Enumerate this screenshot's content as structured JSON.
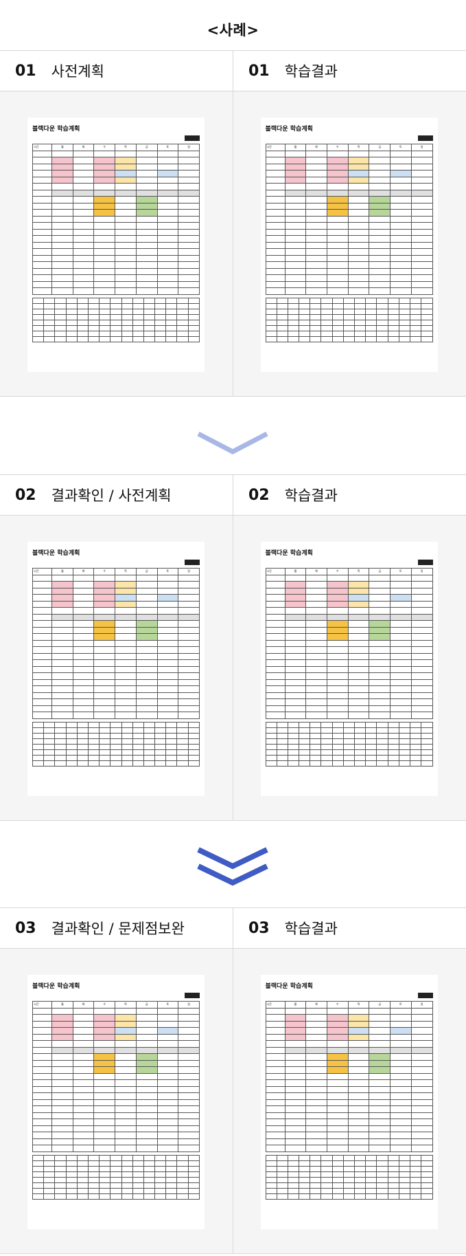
{
  "page_title": "<사례>",
  "sections": [
    {
      "left": {
        "num": "01",
        "title": "사전계획"
      },
      "right": {
        "num": "01",
        "title": "학습결과"
      }
    },
    {
      "left": {
        "num": "02",
        "title": "결과확인 / 사전계획"
      },
      "right": {
        "num": "02",
        "title": "학습결과"
      }
    },
    {
      "left": {
        "num": "03",
        "title": "결과확인 / 문제점보완"
      },
      "right": {
        "num": "03",
        "title": "학습결과"
      }
    }
  ],
  "sheet": {
    "title": "블랙다운 학습계획",
    "days": [
      "시간",
      "월",
      "화",
      "수",
      "목",
      "금",
      "토",
      "일"
    ]
  },
  "colors": {
    "arrow1": "#a9b7e6",
    "arrow2": "#3f5bc4"
  }
}
